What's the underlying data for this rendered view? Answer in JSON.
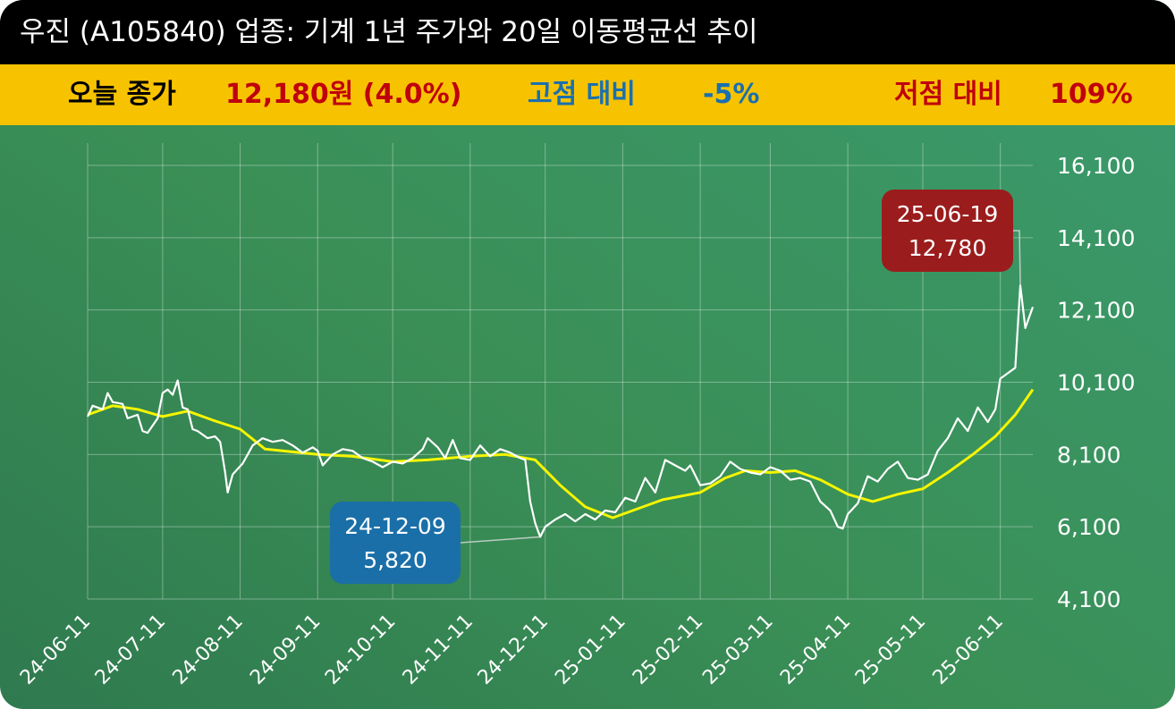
{
  "header": {
    "title": "우진 (A105840) 업종: 기계 1년 주가와 20일 이동평균선 추이"
  },
  "summary": {
    "close_label": "오늘 종가",
    "close_value": "12,180원 (4.0%)",
    "high_label": "고점 대비",
    "high_value": "-5%",
    "low_label": "저점 대비",
    "low_value": "109%"
  },
  "colors": {
    "title_bg": "#000000",
    "summary_bg": "#f7c300",
    "close_text": "#c0000c",
    "high_text": "#1a6fb0",
    "low_text": "#c0000c",
    "price_line": "#ffffff",
    "ma_line": "#f5f500",
    "low_callout": "#1a6fa8",
    "high_callout": "#9b1c1c"
  },
  "chart_data": {
    "type": "line",
    "xlabel": "",
    "ylabel": "",
    "ylim": [
      4100,
      16100
    ],
    "y_ticks": [
      "4,100",
      "6,100",
      "8,100",
      "10,100",
      "12,100",
      "14,100",
      "16,100"
    ],
    "y_tick_values": [
      4100,
      6100,
      8100,
      10100,
      12100,
      14100,
      16100
    ],
    "x_ticks": [
      "24-06-11",
      "24-07-11",
      "24-08-11",
      "24-09-11",
      "24-10-11",
      "24-11-11",
      "24-12-11",
      "25-01-11",
      "25-02-11",
      "25-03-11",
      "25-04-11",
      "25-05-11",
      "25-06-11"
    ],
    "x_range": [
      "2024-06-11",
      "2025-06-24"
    ],
    "grid": true,
    "series": [
      {
        "name": "",
        "role": "price",
        "points": [
          [
            "2024-06-11",
            9150
          ],
          [
            "2024-06-13",
            9450
          ],
          [
            "2024-06-17",
            9350
          ],
          [
            "2024-06-19",
            9800
          ],
          [
            "2024-06-21",
            9550
          ],
          [
            "2024-06-25",
            9500
          ],
          [
            "2024-06-27",
            9100
          ],
          [
            "2024-07-01",
            9200
          ],
          [
            "2024-07-03",
            8750
          ],
          [
            "2024-07-05",
            8700
          ],
          [
            "2024-07-09",
            9100
          ],
          [
            "2024-07-11",
            9800
          ],
          [
            "2024-07-13",
            9900
          ],
          [
            "2024-07-15",
            9750
          ],
          [
            "2024-07-17",
            10150
          ],
          [
            "2024-07-19",
            9400
          ],
          [
            "2024-07-21",
            9350
          ],
          [
            "2024-07-23",
            8800
          ],
          [
            "2024-07-25",
            8750
          ],
          [
            "2024-07-29",
            8550
          ],
          [
            "2024-08-01",
            8600
          ],
          [
            "2024-08-03",
            8450
          ],
          [
            "2024-08-05",
            7600
          ],
          [
            "2024-08-06",
            7050
          ],
          [
            "2024-08-08",
            7550
          ],
          [
            "2024-08-12",
            7850
          ],
          [
            "2024-08-16",
            8350
          ],
          [
            "2024-08-20",
            8550
          ],
          [
            "2024-08-24",
            8450
          ],
          [
            "2024-08-28",
            8500
          ],
          [
            "2024-09-01",
            8350
          ],
          [
            "2024-09-05",
            8150
          ],
          [
            "2024-09-09",
            8300
          ],
          [
            "2024-09-11",
            8200
          ],
          [
            "2024-09-13",
            7800
          ],
          [
            "2024-09-17",
            8100
          ],
          [
            "2024-09-21",
            8250
          ],
          [
            "2024-09-25",
            8200
          ],
          [
            "2024-09-29",
            8000
          ],
          [
            "2024-10-03",
            7900
          ],
          [
            "2024-10-07",
            7750
          ],
          [
            "2024-10-11",
            7900
          ],
          [
            "2024-10-15",
            7850
          ],
          [
            "2024-10-19",
            8000
          ],
          [
            "2024-10-23",
            8250
          ],
          [
            "2024-10-25",
            8550
          ],
          [
            "2024-10-29",
            8300
          ],
          [
            "2024-11-01",
            8000
          ],
          [
            "2024-11-04",
            8500
          ],
          [
            "2024-11-07",
            8000
          ],
          [
            "2024-11-11",
            7950
          ],
          [
            "2024-11-15",
            8350
          ],
          [
            "2024-11-19",
            8050
          ],
          [
            "2024-11-23",
            8250
          ],
          [
            "2024-11-27",
            8150
          ],
          [
            "2024-12-01",
            8000
          ],
          [
            "2024-12-03",
            7950
          ],
          [
            "2024-12-05",
            6800
          ],
          [
            "2024-12-07",
            6200
          ],
          [
            "2024-12-09",
            5820
          ],
          [
            "2024-12-11",
            6100
          ],
          [
            "2024-12-15",
            6300
          ],
          [
            "2024-12-19",
            6450
          ],
          [
            "2024-12-23",
            6250
          ],
          [
            "2024-12-27",
            6450
          ],
          [
            "2024-12-31",
            6300
          ],
          [
            "2025-01-04",
            6550
          ],
          [
            "2025-01-08",
            6500
          ],
          [
            "2025-01-12",
            6900
          ],
          [
            "2025-01-16",
            6800
          ],
          [
            "2025-01-20",
            7450
          ],
          [
            "2025-01-24",
            7050
          ],
          [
            "2025-01-28",
            7950
          ],
          [
            "2025-02-01",
            7800
          ],
          [
            "2025-02-05",
            7650
          ],
          [
            "2025-02-07",
            7800
          ],
          [
            "2025-02-11",
            7250
          ],
          [
            "2025-02-15",
            7300
          ],
          [
            "2025-02-19",
            7500
          ],
          [
            "2025-02-23",
            7900
          ],
          [
            "2025-02-27",
            7700
          ],
          [
            "2025-03-03",
            7600
          ],
          [
            "2025-03-07",
            7550
          ],
          [
            "2025-03-11",
            7750
          ],
          [
            "2025-03-15",
            7650
          ],
          [
            "2025-03-19",
            7400
          ],
          [
            "2025-03-23",
            7450
          ],
          [
            "2025-03-27",
            7350
          ],
          [
            "2025-03-31",
            6800
          ],
          [
            "2025-04-04",
            6550
          ],
          [
            "2025-04-07",
            6100
          ],
          [
            "2025-04-09",
            6050
          ],
          [
            "2025-04-11",
            6450
          ],
          [
            "2025-04-15",
            6750
          ],
          [
            "2025-04-19",
            7500
          ],
          [
            "2025-04-23",
            7350
          ],
          [
            "2025-04-27",
            7700
          ],
          [
            "2025-05-01",
            7900
          ],
          [
            "2025-05-05",
            7450
          ],
          [
            "2025-05-09",
            7400
          ],
          [
            "2025-05-13",
            7550
          ],
          [
            "2025-05-17",
            8200
          ],
          [
            "2025-05-21",
            8550
          ],
          [
            "2025-05-25",
            9100
          ],
          [
            "2025-05-29",
            8750
          ],
          [
            "2025-06-02",
            9400
          ],
          [
            "2025-06-06",
            9000
          ],
          [
            "2025-06-09",
            9350
          ],
          [
            "2025-06-11",
            10200
          ],
          [
            "2025-06-15",
            10400
          ],
          [
            "2025-06-17",
            10500
          ],
          [
            "2025-06-19",
            12780
          ],
          [
            "2025-06-21",
            11600
          ],
          [
            "2025-06-24",
            12180
          ]
        ]
      },
      {
        "name": "",
        "role": "20-day moving average",
        "points": [
          [
            "2024-06-11",
            9200
          ],
          [
            "2024-06-21",
            9450
          ],
          [
            "2024-07-01",
            9350
          ],
          [
            "2024-07-11",
            9150
          ],
          [
            "2024-07-21",
            9300
          ],
          [
            "2024-07-31",
            9050
          ],
          [
            "2024-08-11",
            8800
          ],
          [
            "2024-08-21",
            8250
          ],
          [
            "2024-09-11",
            8100
          ],
          [
            "2024-09-25",
            8050
          ],
          [
            "2024-10-11",
            7900
          ],
          [
            "2024-10-25",
            7950
          ],
          [
            "2024-11-11",
            8050
          ],
          [
            "2024-11-25",
            8100
          ],
          [
            "2024-12-07",
            7950
          ],
          [
            "2024-12-17",
            7250
          ],
          [
            "2024-12-27",
            6650
          ],
          [
            "2025-01-07",
            6350
          ],
          [
            "2025-01-17",
            6600
          ],
          [
            "2025-01-27",
            6850
          ],
          [
            "2025-02-11",
            7050
          ],
          [
            "2025-02-21",
            7450
          ],
          [
            "2025-03-01",
            7650
          ],
          [
            "2025-03-11",
            7600
          ],
          [
            "2025-03-21",
            7650
          ],
          [
            "2025-03-31",
            7400
          ],
          [
            "2025-04-11",
            7000
          ],
          [
            "2025-04-21",
            6800
          ],
          [
            "2025-05-01",
            7000
          ],
          [
            "2025-05-11",
            7150
          ],
          [
            "2025-05-21",
            7600
          ],
          [
            "2025-05-31",
            8100
          ],
          [
            "2025-06-09",
            8600
          ],
          [
            "2025-06-17",
            9200
          ],
          [
            "2025-06-24",
            9900
          ]
        ]
      }
    ],
    "annotations": [
      {
        "role": "low",
        "date_label": "24-12-09",
        "value_label": "5,820",
        "x": "2024-12-09",
        "y": 5820
      },
      {
        "role": "high",
        "date_label": "25-06-19",
        "value_label": "12,780",
        "x": "2025-06-19",
        "y": 12780
      }
    ]
  }
}
